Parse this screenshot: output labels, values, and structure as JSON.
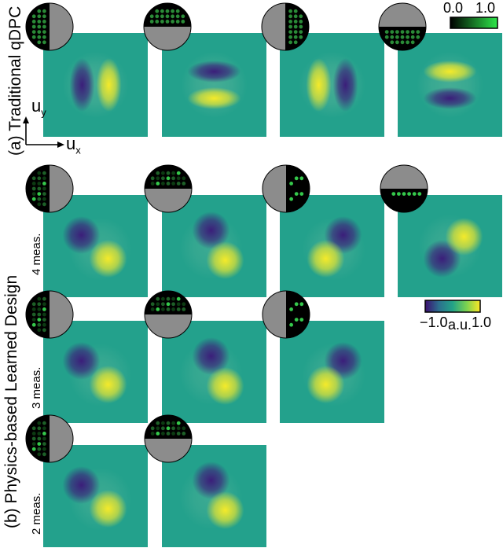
{
  "section_a": {
    "label": "(a) Traditional qDPC",
    "axis_x": "u",
    "axis_x_sub": "x",
    "axis_y": "u",
    "axis_y_sub": "y",
    "colorbar": {
      "min_label": "0.0",
      "max_label": "1.0",
      "colors": [
        "#000000",
        "#2ee84a"
      ]
    },
    "panels": [
      {
        "id": "a1",
        "pattern": "left-half",
        "lobes": "horizontal-dark-left"
      },
      {
        "id": "a2",
        "pattern": "top-half",
        "lobes": "vertical-dark-top"
      },
      {
        "id": "a3",
        "pattern": "right-half",
        "lobes": "horizontal-bright-left"
      },
      {
        "id": "a4",
        "pattern": "bottom-half",
        "lobes": "vertical-bright-top"
      }
    ]
  },
  "section_b": {
    "label": "(b) Physics-based Learned Design",
    "colorbar": {
      "min_label": "−1.0",
      "mid_label": "a.u.",
      "max_label": "1.0",
      "colors": [
        "#3b0f70",
        "#2c6f8e",
        "#23a387",
        "#7ad151",
        "#fde725"
      ]
    },
    "rows": [
      {
        "label": "4 meas.",
        "panels": [
          "b4-1",
          "b4-2",
          "b4-3",
          "b4-4"
        ]
      },
      {
        "label": "3 meas.",
        "panels": [
          "b3-1",
          "b3-2",
          "b3-3"
        ]
      },
      {
        "label": "2 meas.",
        "panels": [
          "b2-1",
          "b2-2"
        ]
      }
    ]
  },
  "colors": {
    "background_teal": "#23a18c",
    "pupil_gray": "#8c8c8c",
    "led_dim": "#0c3b12",
    "led_bright": "#35c84b"
  }
}
